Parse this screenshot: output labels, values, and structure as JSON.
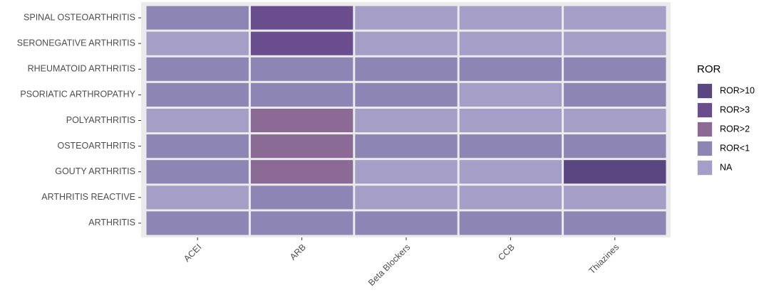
{
  "chart_data": {
    "type": "heatmap",
    "x_categories": [
      "ACEI",
      "ARB",
      "Beta Blockers",
      "CCB",
      "Thiazines"
    ],
    "y_categories": [
      "SPINAL OSTEOARTHRITIS",
      "SERONEGATIVE ARTHRITIS",
      "RHEUMATOID ARTHRITIS",
      "PSORIATIC ARTHROPATHY",
      "POLYARTHRITIS",
      "OSTEOARTHRITIS",
      "GOUTY ARTHRITIS",
      "ARTHRITIS REACTIVE",
      "ARTHRITIS"
    ],
    "legend_title": "ROR",
    "legend_position": "right",
    "levels": [
      {
        "name": "ROR>10",
        "color": "#5a4680"
      },
      {
        "name": "ROR>3",
        "color": "#694d8c"
      },
      {
        "name": "ROR>2",
        "color": "#8b6b95"
      },
      {
        "name": "ROR<1",
        "color": "#8d86b5"
      },
      {
        "name": "NA",
        "color": "#a59ec6"
      }
    ],
    "values": [
      [
        "ROR<1",
        "ROR>3",
        "NA",
        "NA",
        "NA"
      ],
      [
        "NA",
        "ROR>3",
        "NA",
        "NA",
        "NA"
      ],
      [
        "ROR<1",
        "ROR<1",
        "ROR<1",
        "ROR<1",
        "ROR<1"
      ],
      [
        "ROR<1",
        "ROR<1",
        "ROR<1",
        "NA",
        "ROR<1"
      ],
      [
        "NA",
        "ROR>2",
        "NA",
        "NA",
        "NA"
      ],
      [
        "ROR<1",
        "ROR>2",
        "ROR<1",
        "ROR<1",
        "ROR<1"
      ],
      [
        "ROR<1",
        "ROR>2",
        "NA",
        "NA",
        "ROR>10"
      ],
      [
        "NA",
        "ROR<1",
        "NA",
        "NA",
        "NA"
      ],
      [
        "ROR<1",
        "ROR<1",
        "ROR<1",
        "ROR<1",
        "ROR<1"
      ]
    ]
  }
}
